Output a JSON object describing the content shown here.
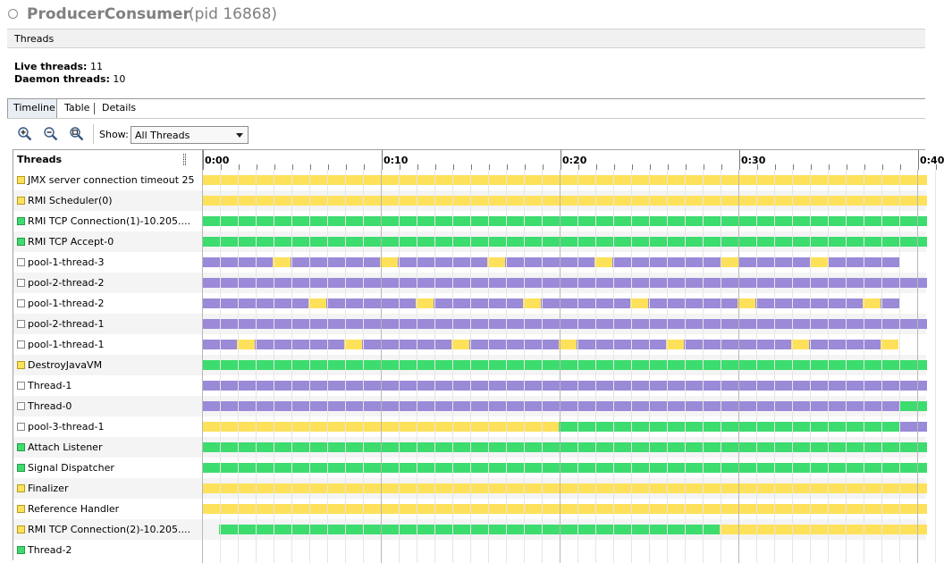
{
  "window": {
    "title": "ProducerConsumer",
    "pid_label": "(pid 16868)"
  },
  "section": {
    "title": "Threads"
  },
  "summary": {
    "live_label": "Live threads:",
    "live_value": "11",
    "daemon_label": "Daemon threads:",
    "daemon_value": "10"
  },
  "tabs": [
    {
      "label": "Timeline",
      "active": true
    },
    {
      "label": "Table"
    },
    {
      "label": "Details"
    }
  ],
  "toolbar": {
    "zoom_in_icon": "zoom-in-icon",
    "zoom_out_icon": "zoom-out-icon",
    "zoom_fit_icon": "zoom-fit-icon",
    "show_label": "Show:",
    "show_value": "All Threads"
  },
  "colors": {
    "running": "#3ddc6e",
    "sleeping": "#9b8ad8",
    "wait": "#fde15a",
    "park": "#f2e15a"
  },
  "timeline": {
    "header": "Threads",
    "ticks": [
      "0:00",
      "0:10",
      "0:20",
      "0:30",
      "0:40"
    ],
    "tick_seconds": [
      0,
      10,
      20,
      30,
      40
    ],
    "threads": [
      {
        "name": "JMX server connection timeout 25",
        "status": "wait",
        "segments": [
          [
            0,
            40.5,
            "wait"
          ]
        ]
      },
      {
        "name": "RMI Scheduler(0)",
        "status": "wait",
        "segments": [
          [
            0,
            40.5,
            "wait"
          ]
        ]
      },
      {
        "name": "RMI TCP Connection(1)-10.205....",
        "status": "running",
        "segments": [
          [
            0,
            40.5,
            "running"
          ]
        ]
      },
      {
        "name": "RMI TCP Accept-0",
        "status": "running",
        "segments": [
          [
            0,
            40.5,
            "running"
          ]
        ]
      },
      {
        "name": "pool-1-thread-3",
        "status": "none",
        "segments": [
          [
            0,
            3.9,
            "sleeping"
          ],
          [
            3.9,
            4.9,
            "wait"
          ],
          [
            4.9,
            9.9,
            "sleeping"
          ],
          [
            9.9,
            10.9,
            "wait"
          ],
          [
            10.9,
            15.9,
            "sleeping"
          ],
          [
            15.9,
            16.9,
            "wait"
          ],
          [
            16.9,
            21.9,
            "sleeping"
          ],
          [
            21.9,
            22.9,
            "wait"
          ],
          [
            22.9,
            29.0,
            "sleeping"
          ],
          [
            29.0,
            30.0,
            "wait"
          ],
          [
            30.0,
            34.0,
            "sleeping"
          ],
          [
            34.0,
            35.0,
            "wait"
          ],
          [
            35.0,
            39.0,
            "sleeping"
          ]
        ]
      },
      {
        "name": "pool-2-thread-2",
        "status": "none",
        "segments": [
          [
            0,
            40.5,
            "sleeping"
          ]
        ]
      },
      {
        "name": "pool-1-thread-2",
        "status": "none",
        "segments": [
          [
            0,
            5.9,
            "sleeping"
          ],
          [
            5.9,
            6.9,
            "wait"
          ],
          [
            6.9,
            11.9,
            "sleeping"
          ],
          [
            11.9,
            12.9,
            "wait"
          ],
          [
            12.9,
            17.9,
            "sleeping"
          ],
          [
            17.9,
            18.9,
            "wait"
          ],
          [
            18.9,
            23.9,
            "sleeping"
          ],
          [
            23.9,
            24.9,
            "wait"
          ],
          [
            24.9,
            29.9,
            "sleeping"
          ],
          [
            29.9,
            30.9,
            "wait"
          ],
          [
            30.9,
            36.9,
            "sleeping"
          ],
          [
            36.9,
            37.9,
            "wait"
          ],
          [
            37.9,
            39.0,
            "sleeping"
          ]
        ]
      },
      {
        "name": "pool-2-thread-1",
        "status": "none",
        "segments": [
          [
            0,
            40.5,
            "sleeping"
          ]
        ]
      },
      {
        "name": "pool-1-thread-1",
        "status": "none",
        "segments": [
          [
            0,
            1.9,
            "sleeping"
          ],
          [
            1.9,
            2.9,
            "wait"
          ],
          [
            2.9,
            7.9,
            "sleeping"
          ],
          [
            7.9,
            8.9,
            "wait"
          ],
          [
            8.9,
            13.9,
            "sleeping"
          ],
          [
            13.9,
            14.9,
            "wait"
          ],
          [
            14.9,
            19.9,
            "sleeping"
          ],
          [
            19.9,
            20.9,
            "wait"
          ],
          [
            20.9,
            25.9,
            "sleeping"
          ],
          [
            25.9,
            26.9,
            "wait"
          ],
          [
            26.9,
            32.9,
            "sleeping"
          ],
          [
            32.9,
            33.9,
            "wait"
          ],
          [
            33.9,
            37.9,
            "sleeping"
          ],
          [
            37.9,
            38.9,
            "wait"
          ]
        ]
      },
      {
        "name": "DestroyJavaVM",
        "status": "wait",
        "segments": [
          [
            0,
            40.5,
            "running"
          ]
        ]
      },
      {
        "name": "Thread-1",
        "status": "none",
        "segments": [
          [
            0,
            40.5,
            "sleeping"
          ]
        ]
      },
      {
        "name": "Thread-0",
        "status": "none",
        "segments": [
          [
            0,
            39.0,
            "sleeping"
          ],
          [
            39.0,
            40.5,
            "running"
          ]
        ]
      },
      {
        "name": "pool-3-thread-1",
        "status": "none",
        "segments": [
          [
            0,
            19.9,
            "wait"
          ],
          [
            19.9,
            39.0,
            "running"
          ],
          [
            39.0,
            40.5,
            "sleeping"
          ]
        ]
      },
      {
        "name": "Attach Listener",
        "status": "running",
        "segments": [
          [
            0,
            40.5,
            "running"
          ]
        ]
      },
      {
        "name": "Signal Dispatcher",
        "status": "running",
        "segments": [
          [
            0,
            40.5,
            "running"
          ]
        ]
      },
      {
        "name": "Finalizer",
        "status": "wait",
        "segments": [
          [
            0,
            40.5,
            "wait"
          ]
        ]
      },
      {
        "name": "Reference Handler",
        "status": "wait",
        "segments": [
          [
            0,
            40.5,
            "wait"
          ]
        ]
      },
      {
        "name": "RMI TCP Connection(2)-10.205....",
        "status": "wait",
        "segments": [
          [
            0.9,
            28.9,
            "running"
          ],
          [
            28.9,
            40.5,
            "wait"
          ]
        ]
      },
      {
        "name": "Thread-2",
        "status": "running",
        "segments": []
      }
    ]
  }
}
